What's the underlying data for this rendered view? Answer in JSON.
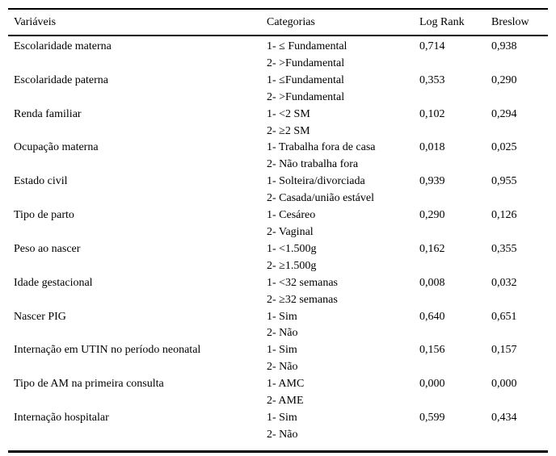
{
  "table": {
    "columns": [
      "Variáveis",
      "Categorias",
      "Log Rank",
      "Breslow"
    ],
    "rows": [
      {
        "variable": "Escolaridade materna",
        "categories": [
          "1- ≤ Fundamental",
          "2- >Fundamental"
        ],
        "log_rank": "0,714",
        "breslow": "0,938"
      },
      {
        "variable": "Escolaridade paterna",
        "categories": [
          "1- ≤Fundamental",
          "2- >Fundamental"
        ],
        "log_rank": "0,353",
        "breslow": "0,290"
      },
      {
        "variable": "Renda familiar",
        "categories": [
          "1- <2 SM",
          "2- ≥2 SM"
        ],
        "log_rank": "0,102",
        "breslow": "0,294"
      },
      {
        "variable": "Ocupação materna",
        "categories": [
          "1- Trabalha fora de casa",
          "2- Não trabalha fora"
        ],
        "log_rank": "0,018",
        "breslow": "0,025"
      },
      {
        "variable": "Estado civil",
        "categories": [
          "1- Solteira/divorciada",
          "2- Casada/união estável"
        ],
        "log_rank": "0,939",
        "breslow": "0,955"
      },
      {
        "variable": "Tipo de parto",
        "categories": [
          "1- Cesáreo",
          "2- Vaginal"
        ],
        "log_rank": "0,290",
        "breslow": "0,126"
      },
      {
        "variable": "Peso ao nascer",
        "categories": [
          "1- <1.500g",
          "2- ≥1.500g"
        ],
        "log_rank": "0,162",
        "breslow": "0,355"
      },
      {
        "variable": "Idade gestacional",
        "categories": [
          "1- <32 semanas",
          "2- ≥32 semanas"
        ],
        "log_rank": "0,008",
        "breslow": "0,032"
      },
      {
        "variable": "Nascer PIG",
        "categories": [
          "1- Sim",
          "2- Não"
        ],
        "log_rank": "0,640",
        "breslow": "0,651"
      },
      {
        "variable": "Internação em UTIN no período neonatal",
        "categories": [
          "1- Sim",
          "2- Não"
        ],
        "log_rank": "0,156",
        "breslow": "0,157"
      },
      {
        "variable": "Tipo de AM na primeira consulta",
        "categories": [
          "1- AMC",
          "2- AME"
        ],
        "log_rank": "0,000",
        "breslow": "0,000"
      },
      {
        "variable": "Internação hospitalar",
        "categories": [
          "1- Sim",
          "2- Não"
        ],
        "log_rank": "0,599",
        "breslow": "0,434"
      }
    ]
  }
}
